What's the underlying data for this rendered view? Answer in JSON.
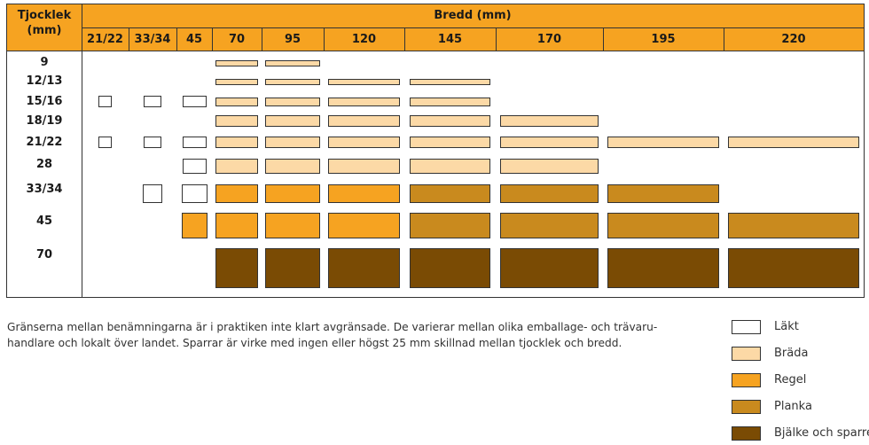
{
  "header": {
    "thickness_label_line1": "Tjocklek",
    "thickness_label_line2": "(mm)",
    "width_label": "Bredd (mm)",
    "width_columns": [
      "21/22",
      "33/34",
      "45",
      "70",
      "95",
      "120",
      "145",
      "170",
      "195",
      "220"
    ]
  },
  "rows": [
    {
      "label": "9",
      "cells": [
        null,
        null,
        null,
        "brada",
        "brada",
        null,
        null,
        null,
        null,
        null
      ]
    },
    {
      "label": "12/13",
      "cells": [
        null,
        null,
        null,
        "brada",
        "brada",
        "brada",
        "brada",
        null,
        null,
        null
      ]
    },
    {
      "label": "15/16",
      "cells": [
        "lakt",
        "lakt",
        "lakt",
        "brada",
        "brada",
        "brada",
        "brada",
        null,
        null,
        null
      ]
    },
    {
      "label": "18/19",
      "cells": [
        null,
        null,
        null,
        "brada",
        "brada",
        "brada",
        "brada",
        "brada",
        null,
        null
      ]
    },
    {
      "label": "21/22",
      "cells": [
        "lakt",
        "lakt",
        "lakt",
        "brada",
        "brada",
        "brada",
        "brada",
        "brada",
        "brada",
        "brada"
      ]
    },
    {
      "label": "28",
      "cells": [
        null,
        null,
        "lakt",
        "brada",
        "brada",
        "brada",
        "brada",
        "brada",
        null,
        null
      ]
    },
    {
      "label": "33/34",
      "cells": [
        null,
        "lakt",
        "lakt",
        "regel",
        "regel",
        "regel",
        "planka",
        "planka",
        "planka",
        null
      ]
    },
    {
      "label": "45",
      "cells": [
        null,
        null,
        "regel",
        "regel",
        "regel",
        "regel",
        "planka",
        "planka",
        "planka",
        "planka"
      ]
    },
    {
      "label": "70",
      "cells": [
        null,
        null,
        null,
        "bjalke",
        "bjalke",
        "bjalke",
        "bjalke",
        "bjalke",
        "bjalke",
        "bjalke"
      ]
    }
  ],
  "footnote": {
    "line1": "Gränserna mellan benämningarna är i praktiken inte klart avgränsade. De varierar mellan olika emballage- och trävaru-",
    "line2": "handlare och lokalt över landet. Sparrar är virke med ingen eller högst 25 mm skillnad mellan tjocklek och bredd."
  },
  "legend": [
    {
      "key": "lakt",
      "label": "Läkt",
      "color": "#ffffff"
    },
    {
      "key": "brada",
      "label": "Bräda",
      "color": "#fcd9a6"
    },
    {
      "key": "regel",
      "label": "Regel",
      "color": "#f6a321"
    },
    {
      "key": "planka",
      "label": "Planka",
      "color": "#c98a1e"
    },
    {
      "key": "bjalke",
      "label": "Bjälke och sparre",
      "color": "#7a4b04"
    }
  ]
}
